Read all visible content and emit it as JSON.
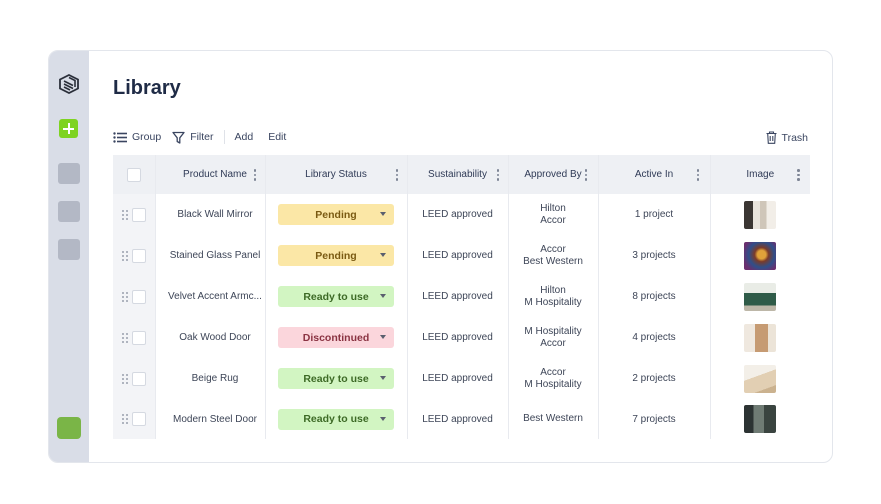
{
  "page": {
    "title": "Library"
  },
  "toolbar": {
    "group": "Group",
    "filter": "Filter",
    "add": "Add",
    "edit": "Edit",
    "trash": "Trash"
  },
  "table": {
    "columns": [
      "Product Name",
      "Library Status",
      "Sustainability",
      "Approved By",
      "Active In",
      "Image"
    ],
    "rows": [
      {
        "name": "Black Wall Mirror",
        "status": "Pending",
        "sustainability": "LEED approved",
        "approved_line1": "Hilton",
        "approved_line2": "Accor",
        "active": "1 project"
      },
      {
        "name": "Stained Glass Panel",
        "status": "Pending",
        "sustainability": "LEED approved",
        "approved_line1": "Accor",
        "approved_line2": "Best Western",
        "active": "3 projects"
      },
      {
        "name": "Velvet Accent Armc...",
        "status": "Ready to use",
        "sustainability": "LEED approved",
        "approved_line1": "Hilton",
        "approved_line2": "M Hospitality",
        "active": "8 projects"
      },
      {
        "name": "Oak Wood Door",
        "status": "Discontinued",
        "sustainability": "LEED approved",
        "approved_line1": "M Hospitality",
        "approved_line2": "Accor",
        "active": "4 projects"
      },
      {
        "name": "Beige Rug",
        "status": "Ready to use",
        "sustainability": "LEED approved",
        "approved_line1": "Accor",
        "approved_line2": "M Hospitality",
        "active": "2 projects"
      },
      {
        "name": "Modern Steel Door",
        "status": "Ready to use",
        "sustainability": "LEED approved",
        "approved_line1": "Best Western",
        "approved_line2": "",
        "active": "7 projects"
      }
    ]
  },
  "colors": {
    "pending_bg": "#fbe7a6",
    "pending_fg": "#7a5a12",
    "ready_bg": "#d2f5c2",
    "ready_fg": "#3d6a26",
    "discontinued_bg": "#fbd6dc",
    "discontinued_fg": "#8a3342",
    "sidebar": "#d9dde7",
    "accent_green": "#7ed321"
  },
  "icons": [
    "logo-icon",
    "plus-icon",
    "list-icon",
    "filter-icon",
    "trash-icon",
    "kebab-icon",
    "drag-handle-icon",
    "chevron-down-icon"
  ]
}
